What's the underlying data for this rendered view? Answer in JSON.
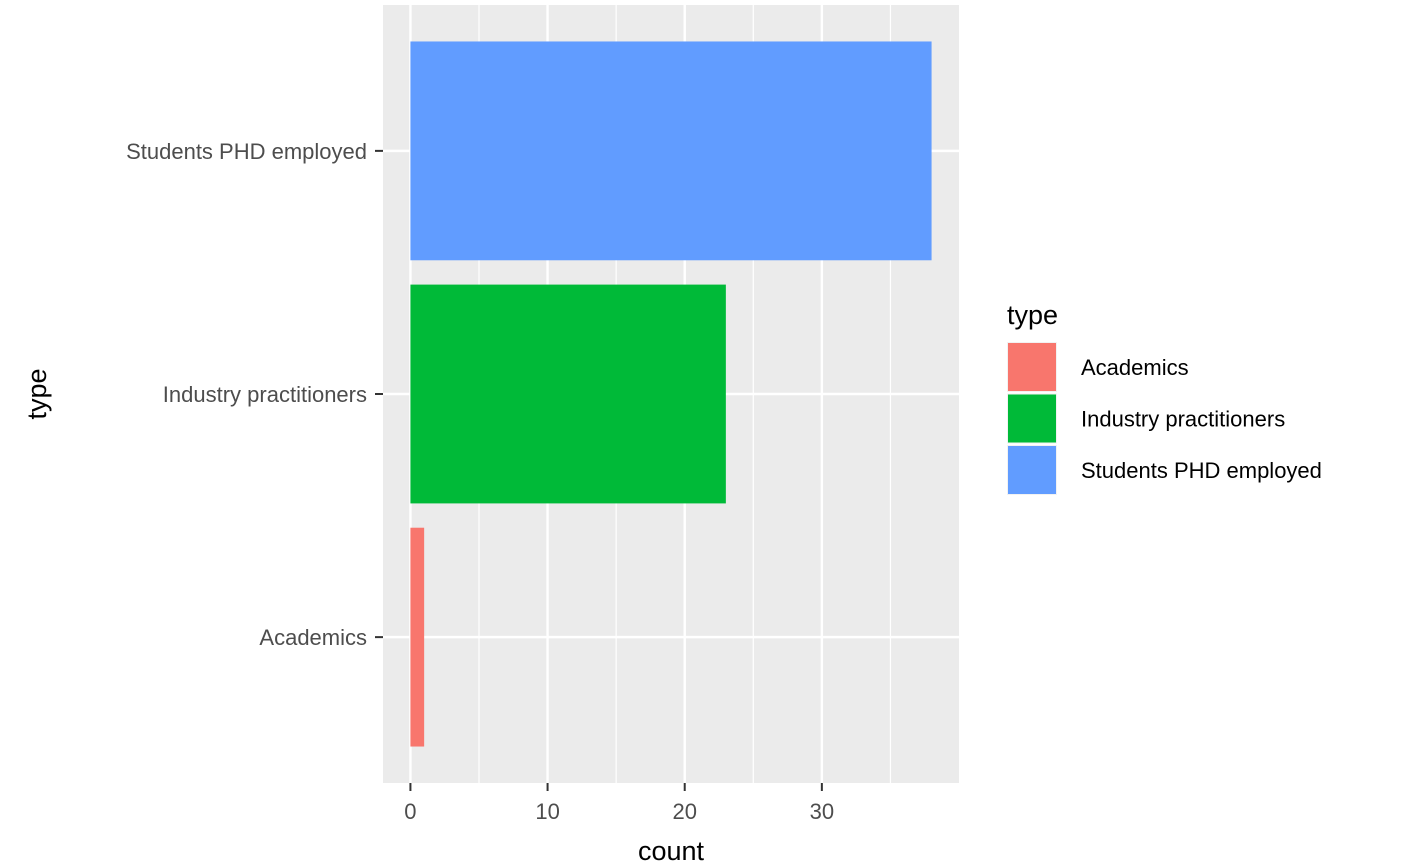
{
  "chart_data": {
    "type": "bar",
    "orientation": "horizontal",
    "categories": [
      "Academics",
      "Industry practitioners",
      "Students PHD employed"
    ],
    "values": [
      1,
      23,
      38
    ],
    "colors": [
      "#F8766D",
      "#00BA38",
      "#619CFF"
    ],
    "xlabel": "count",
    "ylabel": "type",
    "xlim": [
      -2,
      40
    ],
    "x_ticks": [
      0,
      10,
      20,
      30
    ],
    "x_tick_labels": [
      "0",
      "10",
      "20",
      "30"
    ],
    "x_minor_ticks": [
      5,
      15,
      25,
      35
    ],
    "grid": true,
    "panel_background": "#EBEBEB",
    "legend": {
      "title": "type",
      "position": "right",
      "entries": [
        "Academics",
        "Industry practitioners",
        "Students PHD employed"
      ]
    }
  }
}
